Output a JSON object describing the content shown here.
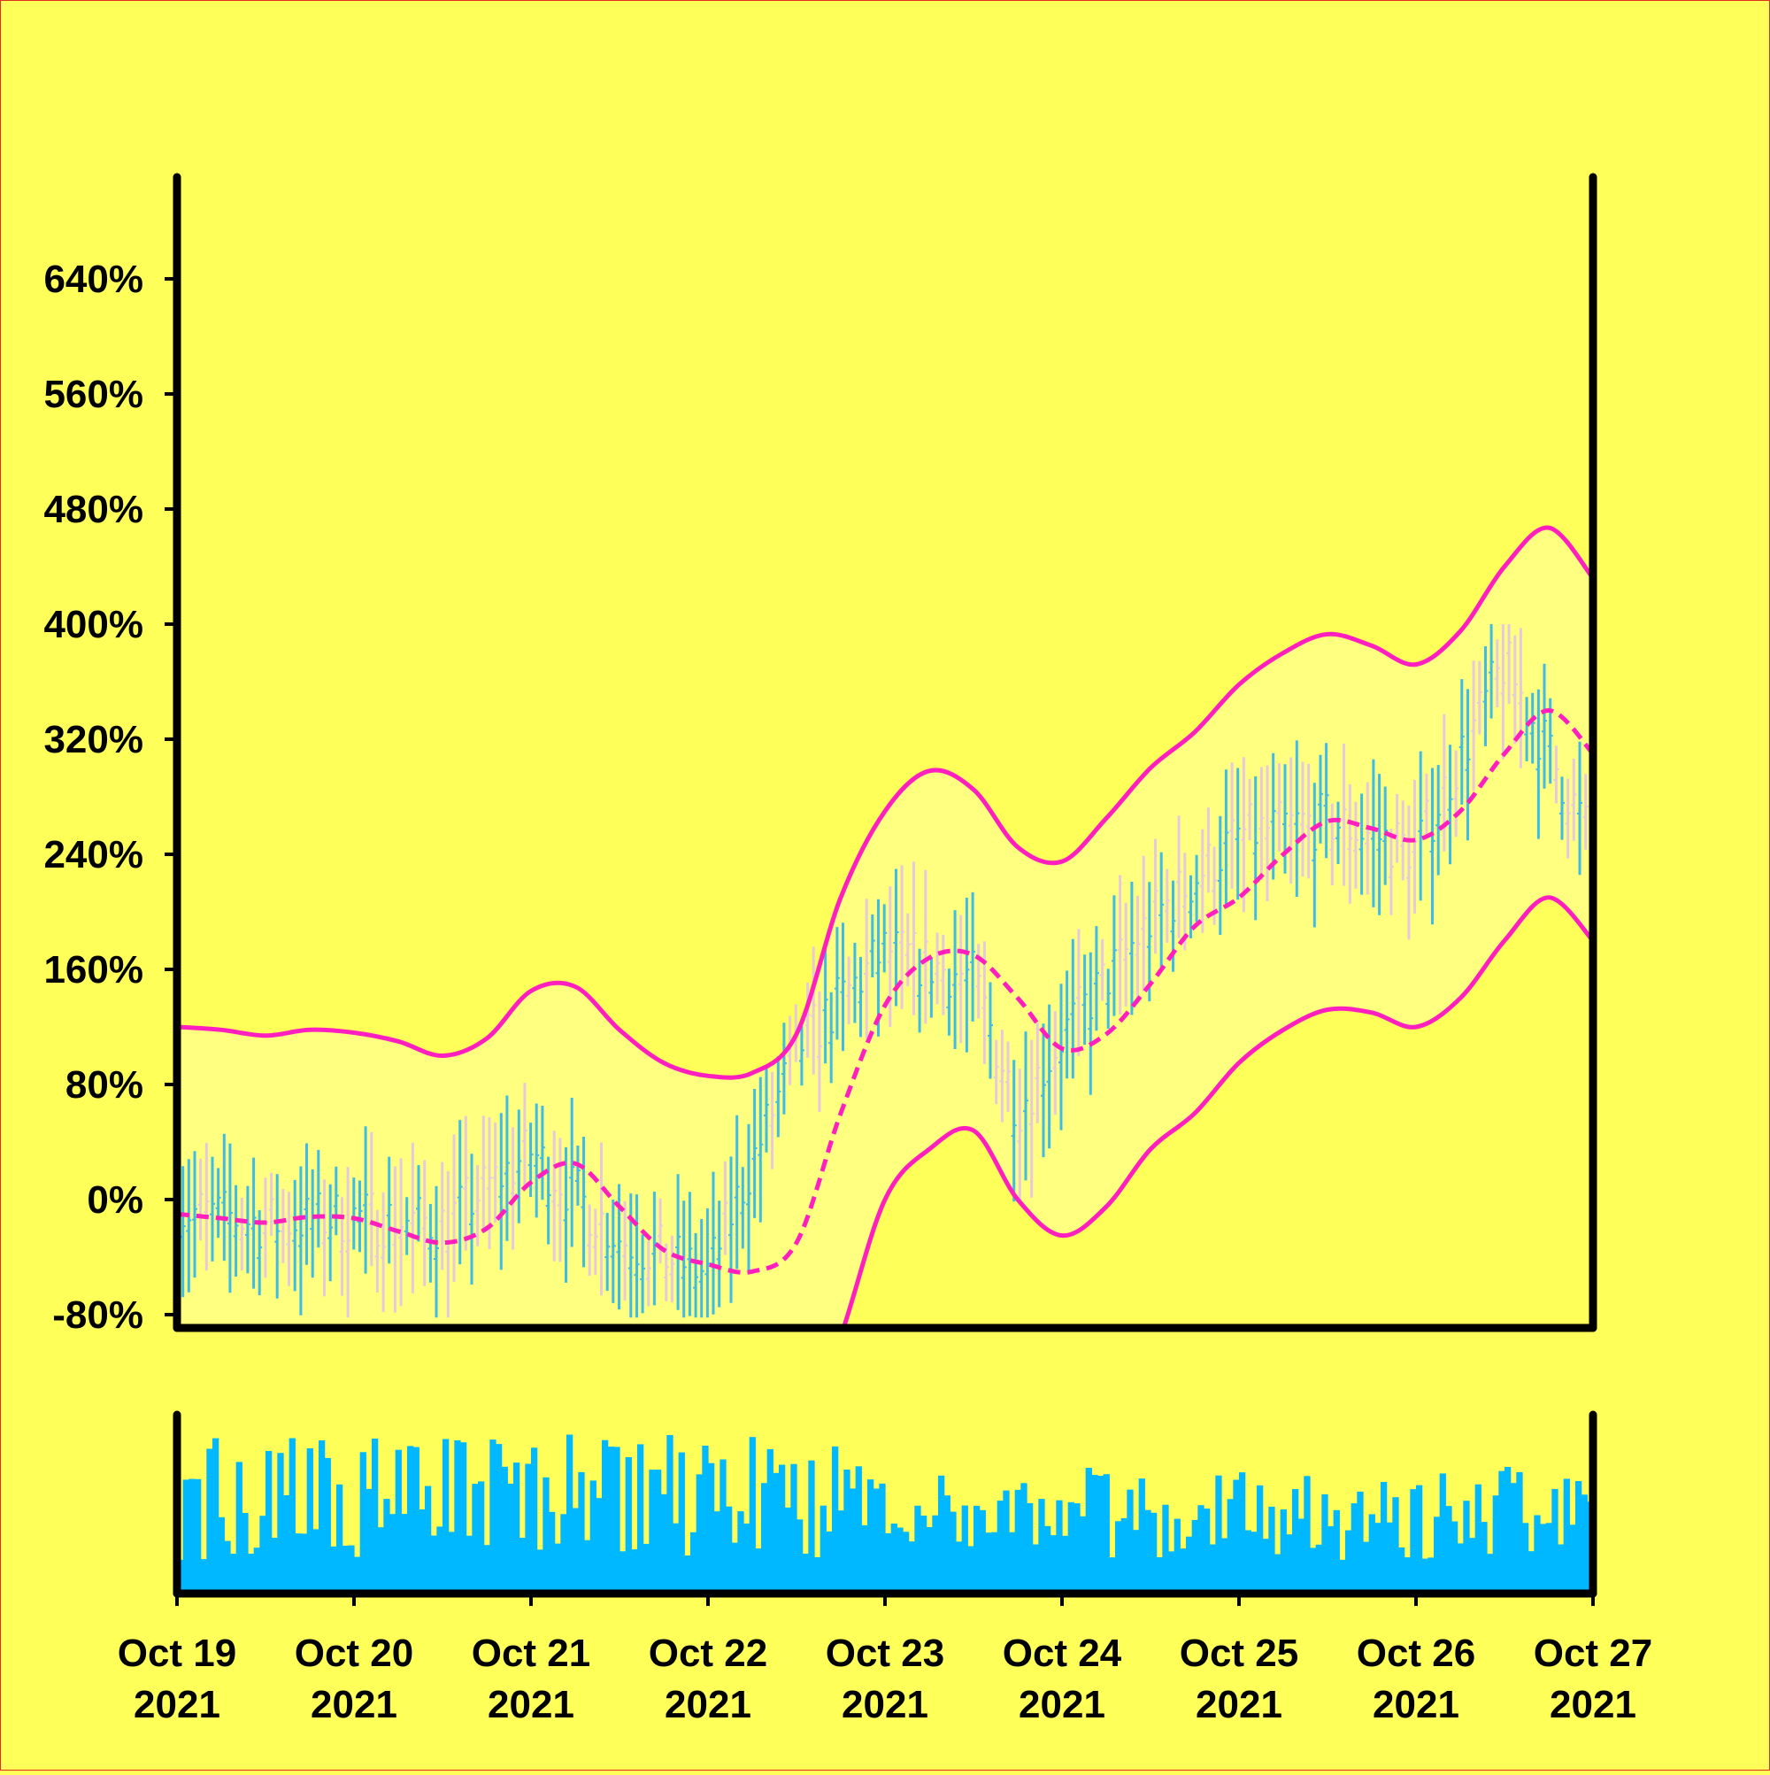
{
  "chart_data": {
    "type": "candlestick",
    "title": "",
    "xlabel": "",
    "ylabel": "",
    "background_color": "#ffff59",
    "colors": {
      "up_bar": "#3dbde6",
      "down_bar": "#e8c8dc",
      "band_line": "#ff1fbf",
      "middle_line": "#ff1fbf",
      "band_fill": "#ffff80",
      "volume_bar": "#00b8ff",
      "axis": "#000000"
    },
    "price_axis": {
      "unit": "%",
      "ylim": [
        -82,
        720
      ],
      "ticks": [
        -80,
        0,
        80,
        160,
        240,
        320,
        400,
        480,
        560,
        640
      ],
      "tick_labels": [
        "-80%",
        "0%",
        "80%",
        "160%",
        "240%",
        "320%",
        "400%",
        "480%",
        "560%",
        "640%"
      ]
    },
    "x_axis": {
      "start": "2021-10-19T00:00",
      "end": "2021-10-27T00:00",
      "ticks": [
        {
          "month_day": "Oct 19",
          "year": "2021"
        },
        {
          "month_day": "Oct 20",
          "year": "2021"
        },
        {
          "month_day": "Oct 21",
          "year": "2021"
        },
        {
          "month_day": "Oct 22",
          "year": "2021"
        },
        {
          "month_day": "Oct 23",
          "year": "2021"
        },
        {
          "month_day": "Oct 24",
          "year": "2021"
        },
        {
          "month_day": "Oct 25",
          "year": "2021"
        },
        {
          "month_day": "Oct 26",
          "year": "2021"
        },
        {
          "month_day": "Oct 27",
          "year": "2021"
        }
      ]
    },
    "bollinger_bands": {
      "x": [
        "2021-10-19T00:00",
        "2021-10-19T06:00",
        "2021-10-19T12:00",
        "2021-10-19T18:00",
        "2021-10-20T00:00",
        "2021-10-20T06:00",
        "2021-10-20T12:00",
        "2021-10-20T18:00",
        "2021-10-21T00:00",
        "2021-10-21T06:00",
        "2021-10-21T12:00",
        "2021-10-21T18:00",
        "2021-10-22T00:00",
        "2021-10-22T06:00",
        "2021-10-22T12:00",
        "2021-10-22T18:00",
        "2021-10-23T00:00",
        "2021-10-23T06:00",
        "2021-10-23T12:00",
        "2021-10-23T18:00",
        "2021-10-24T00:00",
        "2021-10-24T06:00",
        "2021-10-24T12:00",
        "2021-10-24T18:00",
        "2021-10-25T00:00",
        "2021-10-25T06:00",
        "2021-10-25T12:00",
        "2021-10-25T18:00",
        "2021-10-26T00:00",
        "2021-10-26T06:00",
        "2021-10-26T12:00",
        "2021-10-26T18:00",
        "2021-10-27T00:00"
      ],
      "upper": [
        120,
        118,
        114,
        118,
        116,
        110,
        100,
        112,
        145,
        148,
        118,
        95,
        86,
        88,
        115,
        210,
        270,
        298,
        285,
        245,
        235,
        265,
        300,
        325,
        358,
        380,
        393,
        385,
        372,
        395,
        440,
        467,
        432
      ],
      "middle": [
        -10,
        -13,
        -16,
        -12,
        -13,
        -22,
        -30,
        -20,
        12,
        25,
        -5,
        -35,
        -45,
        -50,
        -30,
        60,
        135,
        168,
        170,
        140,
        105,
        115,
        150,
        190,
        210,
        240,
        263,
        258,
        250,
        270,
        310,
        340,
        310
      ],
      "lower": [
        -140,
        -145,
        -147,
        -145,
        -150,
        -160,
        -165,
        -158,
        -125,
        -105,
        -130,
        -165,
        -178,
        -188,
        -175,
        -95,
        0,
        35,
        48,
        0,
        -25,
        -5,
        35,
        60,
        95,
        118,
        132,
        130,
        120,
        140,
        180,
        210,
        180
      ]
    },
    "candles": {
      "count": 240,
      "x_range": [
        "2021-10-19T00:00",
        "2021-10-26T23:00"
      ],
      "range_low": -82,
      "range_high": 400,
      "note_on_values": "",
      "approx_close_path": [
        {
          "x": "2021-10-19T00:00",
          "close": -10
        },
        {
          "x": "2021-10-19T12:00",
          "close": -20
        },
        {
          "x": "2021-10-20T00:00",
          "close": -15
        },
        {
          "x": "2021-10-20T12:00",
          "close": -20
        },
        {
          "x": "2021-10-21T00:00",
          "close": 30
        },
        {
          "x": "2021-10-21T12:00",
          "close": -30
        },
        {
          "x": "2021-10-22T00:00",
          "close": -55
        },
        {
          "x": "2021-10-22T12:00",
          "close": 100
        },
        {
          "x": "2021-10-23T00:00",
          "close": 170
        },
        {
          "x": "2021-10-23T12:00",
          "close": 150
        },
        {
          "x": "2021-10-23T18:00",
          "close": 60
        },
        {
          "x": "2021-10-24T00:00",
          "close": 110
        },
        {
          "x": "2021-10-24T12:00",
          "close": 190
        },
        {
          "x": "2021-10-25T00:00",
          "close": 250
        },
        {
          "x": "2021-10-25T12:00",
          "close": 260
        },
        {
          "x": "2021-10-26T00:00",
          "close": 240
        },
        {
          "x": "2021-10-26T12:00",
          "close": 370
        },
        {
          "x": "2021-10-26T23:00",
          "close": 255
        }
      ]
    },
    "volume": {
      "count": 240,
      "relative_range": [
        0.05,
        1.0
      ]
    }
  }
}
